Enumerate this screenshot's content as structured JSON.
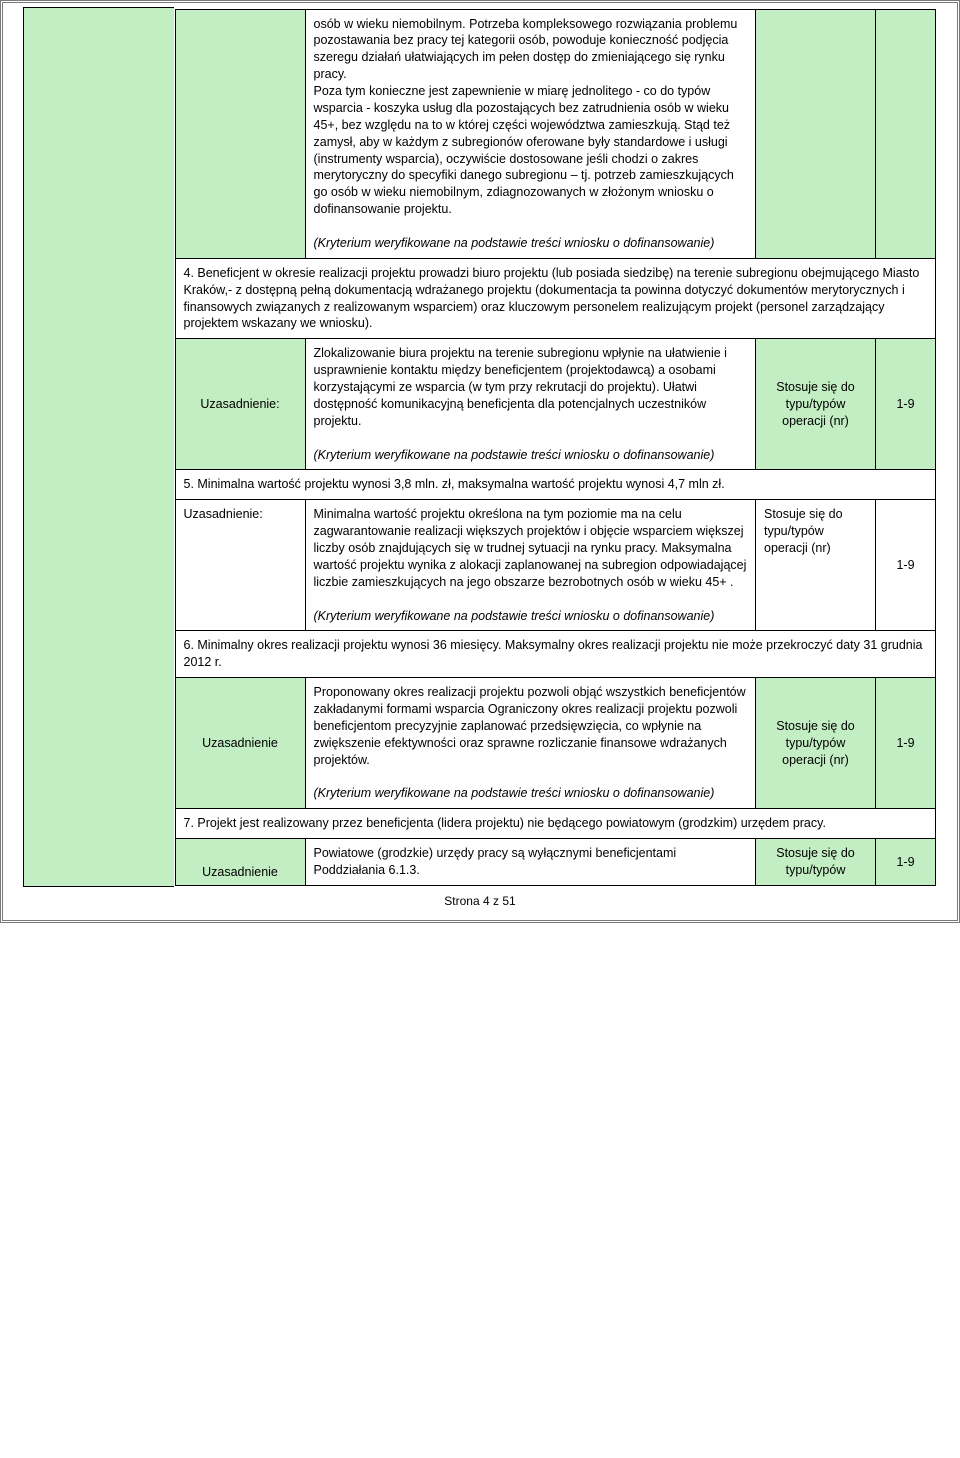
{
  "colors": {
    "green": "#c3edc3",
    "white": "#ffffff",
    "border": "#000000",
    "pageBorder": "#7a7a7a"
  },
  "rows": {
    "r0": {
      "desc": "osób w wieku niemobilnym. Potrzeba kompleksowego rozwiązania problemu pozostawania bez pracy tej kategorii osób, powoduje konieczność podjęcia szeregu działań ułatwiających im pełen dostęp do zmieniającego się rynku pracy.\nPoza tym konieczne jest zapewnienie w miarę jednolitego - co do typów wsparcia - koszyka usług dla pozostających bez zatrudnienia osób w wieku 45+, bez względu na to w której części województwa zamieszkują. Stąd też zamysł, aby w każdym z subregionów oferowane były standardowe i usługi (instrumenty wsparcia), oczywiście dostosowane jeśli chodzi o  zakres merytoryczny do specyfiki danego subregionu – tj. potrzeb zamieszkujących go osób w wieku niemobilnym,  zdiagnozowanych w złożonym wniosku  o dofinansowanie projektu.",
      "note": "(Kryterium weryfikowane na podstawie treści wniosku o dofinansowanie)"
    },
    "h4": "4. Beneficjent w okresie realizacji projektu prowadzi biuro projektu (lub posiada siedzibę) na terenie subregionu obejmującego Miasto Kraków,- z dostępną pełną dokumentacją wdrażanego projektu (dokumentacja ta powinna dotyczyć dokumentów merytorycznych i finansowych związanych z realizowanym wsparciem) oraz kluczowym personelem realizującym projekt  (personel zarządzający projektem wskazany we wniosku).",
    "r4": {
      "uzas": "Uzasadnienie:",
      "desc": "Zlokalizowanie biura projektu na terenie subregionu wpłynie na ułatwienie i usprawnienie kontaktu między beneficjentem (projektodawcą) a osobami korzystającymi ze wsparcia (w tym przy rekrutacji do projektu). Ułatwi dostępność komunikacyjną beneficjenta dla potencjalnych uczestników projektu.",
      "note": "(Kryterium weryfikowane na podstawie treści wniosku o dofinansowanie)",
      "stos": "Stosuje się do typu/typów operacji (nr)",
      "num": "1-9"
    },
    "h5": "5. Minimalna wartość projektu wynosi 3,8  mln. zł, maksymalna wartość projektu wynosi  4,7 mln zł.",
    "r5": {
      "uzas": "Uzasadnienie:",
      "desc": "Minimalna wartość projektu określona na tym poziomie ma na celu zagwarantowanie realizacji większych projektów i objęcie wsparciem większej liczby osób znajdujących się w trudnej sytuacji na rynku pracy. Maksymalna wartość projektu wynika z alokacji zaplanowanej na subregion odpowiadającej liczbie zamieszkujących na jego obszarze bezrobotnych osób w wieku 45+ .",
      "note": "(Kryterium weryfikowane na podstawie treści wniosku o dofinansowanie)",
      "stos": "Stosuje się do typu/typów operacji (nr)",
      "num": "1-9"
    },
    "h6": "6. Minimalny okres realizacji projektu wynosi 36  miesięcy.  Maksymalny okres realizacji projektu  nie może przekroczyć daty 31 grudnia 2012 r.",
    "r6": {
      "uzas": "Uzasadnienie",
      "desc": "Proponowany okres realizacji projektu pozwoli objąć wszystkich beneficjentów zakładanymi formami wsparcia  Ograniczony okres realizacji projektu pozwoli beneficjentom precyzyjnie zaplanować przedsięwzięcia, co wpłynie na zwiększenie efektywności oraz sprawne rozliczanie finansowe wdrażanych projektów.",
      "note": "(Kryterium weryfikowane na podstawie treści wniosku o dofinansowanie)",
      "stos": "Stosuje się do typu/typów operacji (nr)",
      "num": "1-9"
    },
    "h7": "7. Projekt jest realizowany przez beneficjenta (lidera projektu)  nie będącego  powiatowym (grodzkim) urzędem pracy.",
    "r7": {
      "uzas": "Uzasadnienie",
      "desc": "Powiatowe (grodzkie) urzędy pracy są wyłącznymi beneficjentami Poddziałania 6.1.3.",
      "stos": "Stosuje się do typu/typów",
      "num": "1-9"
    }
  },
  "footer": "Strona 4 z 51"
}
